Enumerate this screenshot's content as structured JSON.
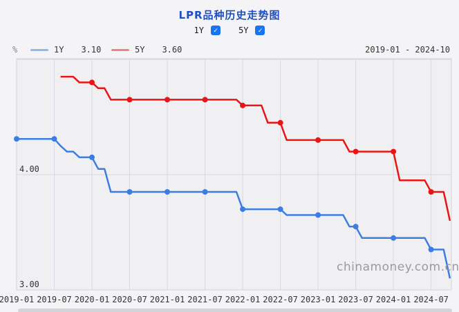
{
  "header": {
    "title": "LPR品种历史走势图",
    "controls": [
      {
        "label": "1Y",
        "checked": true
      },
      {
        "label": "5Y",
        "checked": true
      }
    ],
    "unit": "%",
    "date_range": "2019-01 - 2024-10"
  },
  "watermark": "chinamoney.com.cn",
  "colors": {
    "title": "#1f4fc5",
    "checkbox": "#1b74f0",
    "gridline": "#d5d9e4",
    "plot_border": "#d8d9de",
    "plot_bg": "#f0f0f3",
    "page_bg": "#f4f4f6",
    "watermark": "#9a9a9e",
    "scrollbar": "#d2d4da"
  },
  "chart_data": {
    "type": "line",
    "title": "LPR品种历史走势图",
    "ylabel": "%",
    "ylim": [
      3.0,
      5.0
    ],
    "y_gridlines": [
      3.0,
      4.0,
      5.0
    ],
    "y_tick_labels": [
      "4.00",
      "3.00"
    ],
    "x_ticks": [
      "2019-01",
      "2019-07",
      "2020-01",
      "2020-07",
      "2021-01",
      "2021-07",
      "2022-01",
      "2022-07",
      "2023-01",
      "2023-07",
      "2024-01",
      "2024-07"
    ],
    "x_start": "2019-01",
    "x_end": "2024-10",
    "grid": true,
    "legend_position": "top-left",
    "marker_months": "every January and July",
    "value_semantics": "monthly step series; each [month, rate%] holds until the next change",
    "series": [
      {
        "name": "1Y",
        "latest": "3.10",
        "color": "#3d7ce2",
        "legend_color": "#8fb9ea",
        "rate_changes": [
          [
            "2019-01",
            4.31
          ],
          [
            "2019-08",
            4.25
          ],
          [
            "2019-09",
            4.2
          ],
          [
            "2019-11",
            4.15
          ],
          [
            "2020-02",
            4.05
          ],
          [
            "2020-04",
            3.85
          ],
          [
            "2022-01",
            3.7
          ],
          [
            "2022-08",
            3.65
          ],
          [
            "2023-06",
            3.55
          ],
          [
            "2023-08",
            3.45
          ],
          [
            "2024-07",
            3.35
          ],
          [
            "2024-10",
            3.1
          ]
        ]
      },
      {
        "name": "5Y",
        "latest": "3.60",
        "color": "#ea1414",
        "legend_color": "#f28080",
        "rate_changes": [
          [
            "2019-08",
            4.85
          ],
          [
            "2019-11",
            4.8
          ],
          [
            "2020-02",
            4.75
          ],
          [
            "2020-04",
            4.65
          ],
          [
            "2022-01",
            4.6
          ],
          [
            "2022-05",
            4.45
          ],
          [
            "2022-08",
            4.3
          ],
          [
            "2023-06",
            4.2
          ],
          [
            "2024-02",
            3.95
          ],
          [
            "2024-07",
            3.85
          ],
          [
            "2024-10",
            3.6
          ]
        ]
      }
    ]
  }
}
